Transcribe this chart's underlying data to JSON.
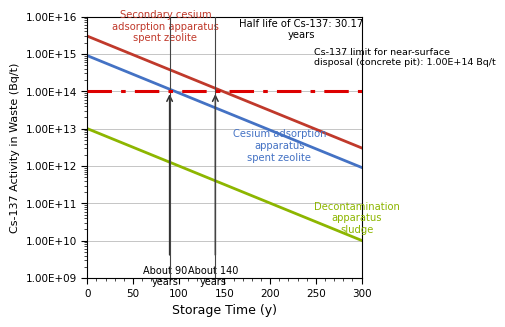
{
  "xlabel": "Storage Time (y)",
  "ylabel": "Cs-137 Activity in Waste (Bq/t)",
  "xmin": 0,
  "xmax": 300,
  "ymin": 1000000000.0,
  "ymax": 1e+16,
  "half_life": 30.17,
  "limit_value": 100000000000000.0,
  "limit_label": "Cs-137 limit for near-surface\ndisposal (concrete pit): 1.00E+14 Bq/t",
  "half_life_label": "Half life of Cs-137: 30.17\nyears",
  "lines": [
    {
      "name": "Secondary cesium\nadsorption apparatus\nspent zeolite",
      "A0": 3000000000000000.0,
      "color": "#c0392b",
      "linewidth": 2.0,
      "label_color": "#c0392b"
    },
    {
      "name": "Cesium adsorption\napparatus\nspent zeolite",
      "A0": 900000000000000.0,
      "color": "#4472c4",
      "linewidth": 2.0,
      "label_color": "#4472c4"
    },
    {
      "name": "Decontamination\napparatus\nsludge",
      "A0": 10000000000000.0,
      "color": "#8db600",
      "linewidth": 2.0,
      "label_color": "#8db600"
    }
  ],
  "bg_color": "#ffffff",
  "grid_color": "#bbbbbb"
}
